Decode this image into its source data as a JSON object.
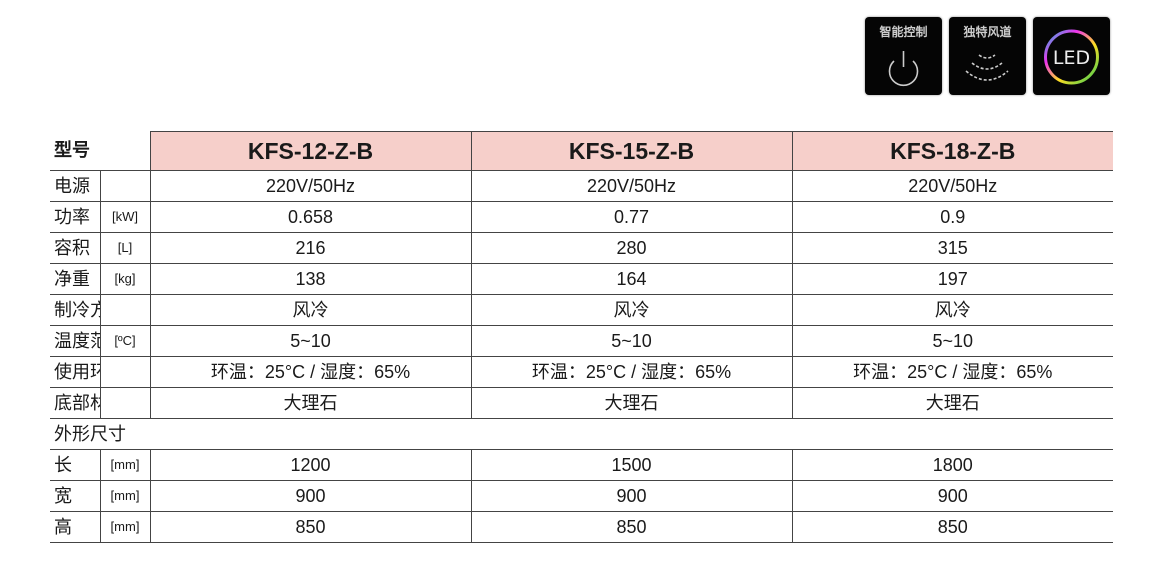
{
  "badges": [
    {
      "label": "智能控制",
      "icon": "power-icon"
    },
    {
      "label": "独特风道",
      "icon": "airflow-icon"
    },
    {
      "label": "LED",
      "icon": "led-ring-icon"
    }
  ],
  "header_color": "#f6cfca",
  "table": {
    "header_label": "型号",
    "models": [
      "KFS-12-Z-B",
      "KFS-15-Z-B",
      "KFS-18-Z-B"
    ],
    "rows": [
      {
        "label": "电源",
        "unit": "",
        "values": [
          "220V/50Hz",
          "220V/50Hz",
          "220V/50Hz"
        ]
      },
      {
        "label": "功率",
        "unit": "[kW]",
        "values": [
          "0.658",
          "0.77",
          "0.9"
        ]
      },
      {
        "label": "容积",
        "unit": "[L]",
        "values": [
          "216",
          "280",
          "315"
        ]
      },
      {
        "label": "净重",
        "unit": "[kg]",
        "values": [
          "138",
          "164",
          "197"
        ]
      },
      {
        "label": "制冷方式",
        "unit": "",
        "values": [
          "风冷",
          "风冷",
          "风冷"
        ]
      },
      {
        "label": "温度范围",
        "unit": "[ºC]",
        "values": [
          "5~10",
          "5~10",
          "5~10"
        ]
      },
      {
        "label": "使用环境",
        "unit": "",
        "values": [
          "环温：25°C / 湿度：65%",
          "环温：25°C / 湿度：65%",
          "环温：25°C / 湿度：65%"
        ]
      },
      {
        "label": "底部材质",
        "unit": "",
        "values": [
          "大理石",
          "大理石",
          "大理石"
        ]
      }
    ],
    "group_label": "外形尺寸",
    "dim_rows": [
      {
        "label": "长",
        "unit": "[mm]",
        "values": [
          "1200",
          "1500",
          "1800"
        ]
      },
      {
        "label": "宽",
        "unit": "[mm]",
        "values": [
          "900",
          "900",
          "900"
        ]
      },
      {
        "label": "高",
        "unit": "[mm]",
        "values": [
          "850",
          "850",
          "850"
        ]
      }
    ]
  }
}
